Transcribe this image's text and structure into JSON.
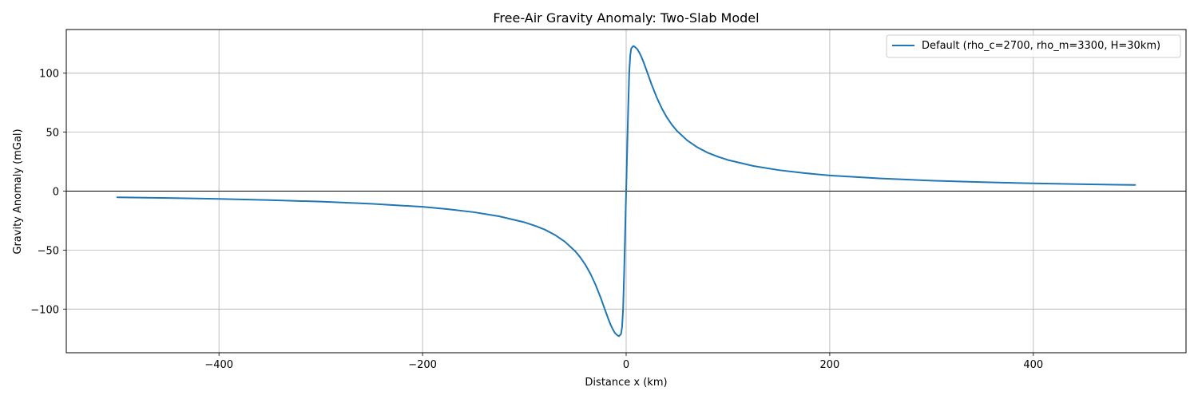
{
  "chart_data": {
    "type": "line",
    "title": "Free-Air Gravity Anomaly: Two-Slab Model",
    "xlabel": "Distance x (km)",
    "ylabel": "Gravity Anomaly (mGal)",
    "xlim": [
      -550,
      550
    ],
    "ylim": [
      -137,
      137
    ],
    "xticks": [
      -400,
      -200,
      0,
      200,
      400
    ],
    "xtick_labels": [
      "−400",
      "−200",
      "0",
      "200",
      "400"
    ],
    "yticks": [
      -100,
      -50,
      0,
      50,
      100
    ],
    "ytick_labels": [
      "−100",
      "−50",
      "0",
      "50",
      "100"
    ],
    "grid": true,
    "zero_line": true,
    "legend_position": "top-right",
    "series": [
      {
        "name": "Default (rho_c=2700, rho_m=3300, H=30km)",
        "color": "#1f77b4",
        "x": [
          -500,
          -450,
          -400,
          -350,
          -300,
          -250,
          -200,
          -175,
          -150,
          -125,
          -100,
          -90,
          -80,
          -70,
          -60,
          -50,
          -45,
          -40,
          -35,
          -30,
          -25,
          -20,
          -17,
          -15,
          -13,
          -11,
          -9,
          -7,
          -5,
          -4,
          -3,
          -2,
          -1,
          0,
          1,
          2,
          3,
          4,
          5,
          7,
          9,
          11,
          13,
          15,
          17,
          20,
          25,
          30,
          35,
          40,
          45,
          50,
          60,
          70,
          80,
          90,
          100,
          125,
          150,
          175,
          200,
          250,
          300,
          350,
          400,
          450,
          500
        ],
        "y": [
          -5.2,
          -5.8,
          -6.6,
          -7.6,
          -8.9,
          -10.7,
          -13.3,
          -15.3,
          -17.8,
          -21.3,
          -26.4,
          -29.2,
          -32.6,
          -37.1,
          -43.0,
          -51.0,
          -56.2,
          -62.5,
          -70.2,
          -79.5,
          -90.4,
          -102.5,
          -109.5,
          -113.8,
          -117.3,
          -120.3,
          -122.0,
          -123.0,
          -121.0,
          -115.0,
          -100.0,
          -70.0,
          -35.0,
          0.0,
          35.0,
          70.0,
          100.0,
          115.0,
          121.0,
          123.0,
          122.0,
          120.3,
          117.3,
          113.8,
          109.5,
          102.5,
          90.4,
          79.5,
          70.2,
          62.5,
          56.2,
          51.0,
          43.0,
          37.1,
          32.6,
          29.2,
          26.4,
          21.3,
          17.8,
          15.3,
          13.3,
          10.7,
          8.9,
          7.6,
          6.6,
          5.8,
          5.2
        ]
      }
    ]
  }
}
